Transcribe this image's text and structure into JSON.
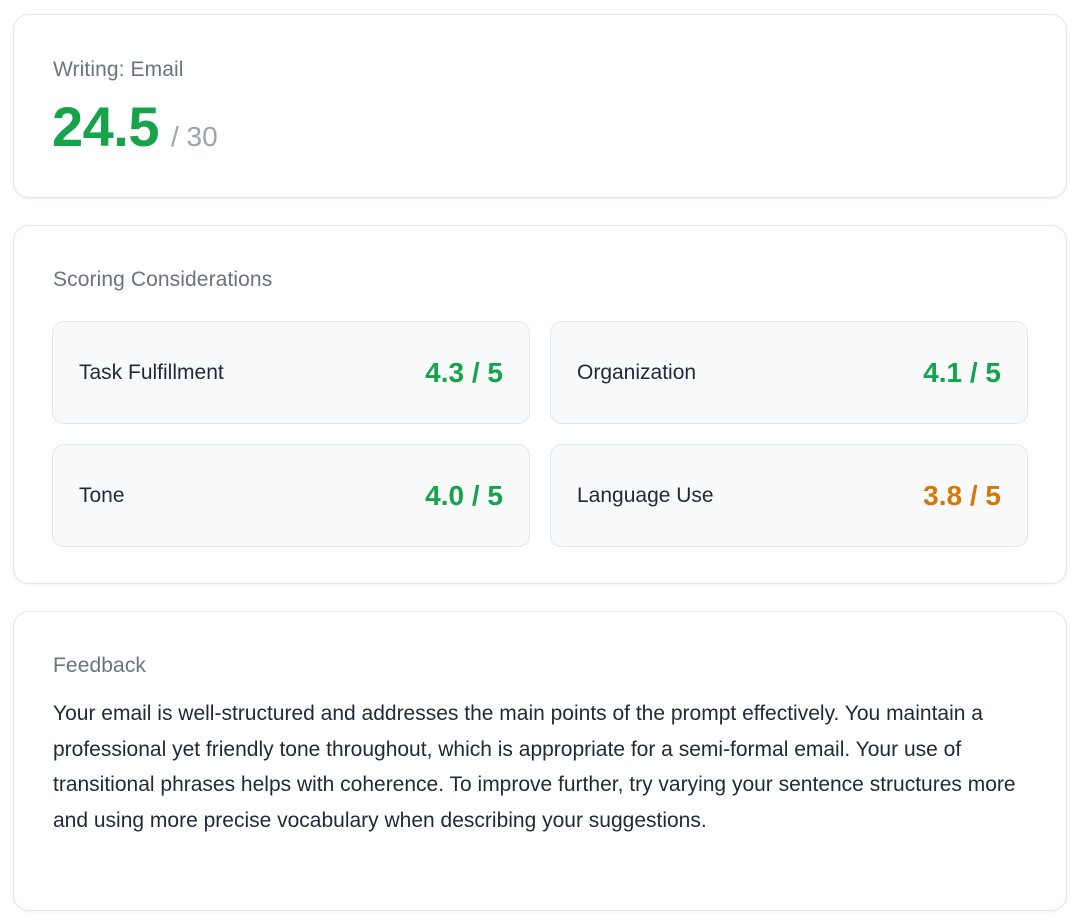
{
  "score_card": {
    "label": "Writing: Email",
    "score": "24.5",
    "max": "/ 30"
  },
  "scoring": {
    "label": "Scoring Considerations",
    "criteria": [
      {
        "name": "Task Fulfillment",
        "score": "4.3 / 5",
        "level": "green"
      },
      {
        "name": "Organization",
        "score": "4.1 / 5",
        "level": "green"
      },
      {
        "name": "Tone",
        "score": "4.0 / 5",
        "level": "green"
      },
      {
        "name": "Language Use",
        "score": "3.8 / 5",
        "level": "amber"
      }
    ]
  },
  "feedback": {
    "label": "Feedback",
    "text": "Your email is well-structured and addresses the main points of the prompt effectively. You maintain a professional yet friendly tone throughout, which is appropriate for a semi-formal email. Your use of transitional phrases helps with coherence. To improve further, try varying your sentence structures more and using more precise vocabulary when describing your suggestions."
  },
  "colors": {
    "green": "#16a34a",
    "amber": "#d97706",
    "muted": "#6b7280"
  }
}
